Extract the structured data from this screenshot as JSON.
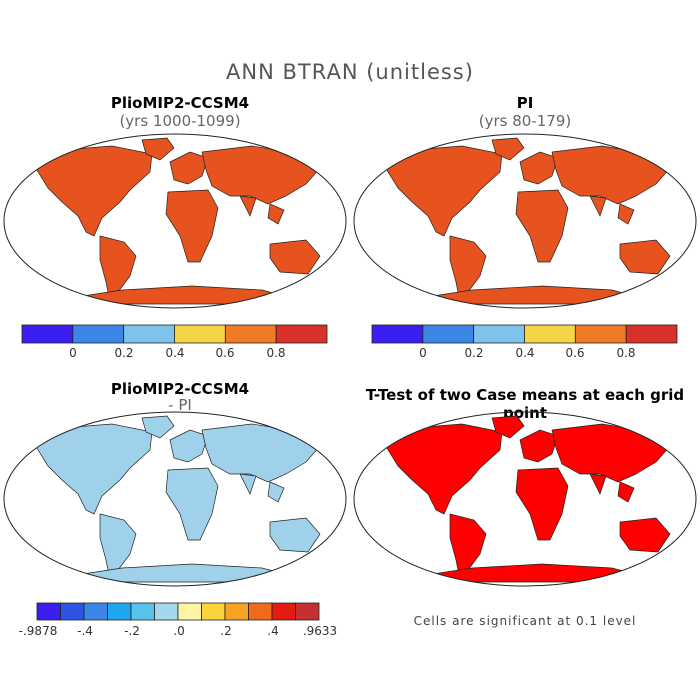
{
  "figure": {
    "title": "ANN BTRAN (unitless)"
  },
  "panels": [
    {
      "id": "plio",
      "title": "PlioMIP2-CCSM4",
      "subtitle": "(yrs 1000-1099)",
      "land_color": "#e6531f"
    },
    {
      "id": "pi",
      "title": "PI",
      "subtitle": "(yrs 80-179)",
      "land_color": "#e6531f"
    },
    {
      "id": "diff",
      "title": "PlioMIP2-CCSM4",
      "subtitle": "- PI",
      "land_color": "#9fd1ea"
    },
    {
      "id": "ttest",
      "title": "T-Test of two Case means at each grid point",
      "subtitle": "",
      "land_color": "#ff0000",
      "note": "Cells are significant at 0.1 level"
    }
  ],
  "colorbar_main": {
    "colors": [
      "#3b1ef0",
      "#3c86e6",
      "#7ec3ec",
      "#f5d545",
      "#f07a25",
      "#d8312a"
    ],
    "labels": [
      "0",
      "0.2",
      "0.4",
      "0.6",
      "0.8"
    ]
  },
  "colorbar_diff": {
    "colors": [
      "#3b1ef0",
      "#2d54e6",
      "#3c86e6",
      "#1ea7ee",
      "#55c3ec",
      "#a5d7ec",
      "#fdf5a4",
      "#fbd33a",
      "#f7a323",
      "#f06a1b",
      "#e31c12",
      "#c73030"
    ],
    "labels": [
      "-.9878",
      "-.4",
      "-.2",
      ".0",
      ".2",
      ".4",
      ".9633"
    ]
  }
}
